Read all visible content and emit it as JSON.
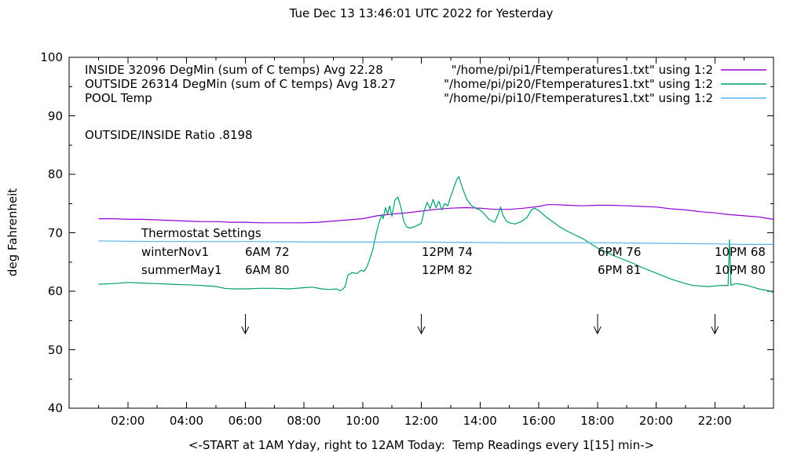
{
  "annotations": {
    "ratio": "OUTSIDE/INSIDE Ratio .8198",
    "thermostat": {
      "heading": "Thermostat Settings",
      "marker_hours": [
        6,
        12,
        18,
        22
      ],
      "rows": [
        {
          "name": "winterNov1",
          "settings": [
            "6AM 72",
            "12PM 74",
            "6PM 76",
            "10PM 68"
          ]
        },
        {
          "name": "summerMay1",
          "settings": [
            "6AM 80",
            "12PM 82",
            "6PM 81",
            "10PM 80"
          ]
        }
      ]
    }
  },
  "legend": {
    "entries": [
      {
        "label": "INSIDE 32096 DegMin (sum of C temps) Avg 22.28",
        "source": "\"/home/pi/pi1/Ftemperatures1.txt\" using 1:2"
      },
      {
        "label": "OUTSIDE 26314 DegMin (sum of C temps) Avg 18.27",
        "source": "\"/home/pi/pi20/Ftemperatures1.txt\" using 1:2"
      },
      {
        "label": "POOL Temp",
        "source": "\"/home/pi/pi10/Ftemperatures1.txt\" using 1:2"
      }
    ]
  },
  "chart_data": {
    "type": "line",
    "title": "Tue Dec 13 13:46:01 UTC 2022 for Yesterday",
    "xlabel": "<-START at 1AM Yday, right to 12AM Today:  Temp Readings every 1[15] min->",
    "ylabel": "deg Fahrenheit",
    "xlim": [
      0,
      24
    ],
    "ylim": [
      40,
      100
    ],
    "grid": false,
    "legend_position": "inside top",
    "xticks": [
      {
        "v": 2,
        "label": "02:00"
      },
      {
        "v": 4,
        "label": "04:00"
      },
      {
        "v": 6,
        "label": "06:00"
      },
      {
        "v": 8,
        "label": "08:00"
      },
      {
        "v": 10,
        "label": "10:00"
      },
      {
        "v": 12,
        "label": "12:00"
      },
      {
        "v": 14,
        "label": "14:00"
      },
      {
        "v": 16,
        "label": "16:00"
      },
      {
        "v": 18,
        "label": "18:00"
      },
      {
        "v": 20,
        "label": "20:00"
      },
      {
        "v": 22,
        "label": "22:00"
      }
    ],
    "yticks": [
      40,
      50,
      60,
      70,
      80,
      90,
      100
    ],
    "series": [
      {
        "name": "INSIDE",
        "color": "#9400d3",
        "points": [
          [
            1.0,
            72.4
          ],
          [
            1.5,
            72.4
          ],
          [
            2.0,
            72.3
          ],
          [
            2.5,
            72.3
          ],
          [
            3.0,
            72.2
          ],
          [
            3.5,
            72.1
          ],
          [
            4.0,
            72.0
          ],
          [
            4.5,
            71.9
          ],
          [
            5.0,
            71.9
          ],
          [
            5.5,
            71.8
          ],
          [
            6.0,
            71.8
          ],
          [
            6.5,
            71.7
          ],
          [
            7.0,
            71.7
          ],
          [
            7.5,
            71.7
          ],
          [
            8.0,
            71.7
          ],
          [
            8.5,
            71.8
          ],
          [
            9.0,
            72.0
          ],
          [
            9.5,
            72.2
          ],
          [
            10.0,
            72.4
          ],
          [
            10.5,
            72.9
          ],
          [
            11.0,
            73.2
          ],
          [
            11.5,
            73.4
          ],
          [
            12.0,
            73.7
          ],
          [
            12.5,
            74.0
          ],
          [
            13.0,
            74.2
          ],
          [
            13.5,
            74.3
          ],
          [
            14.0,
            74.2
          ],
          [
            14.5,
            74.0
          ],
          [
            15.0,
            74.0
          ],
          [
            15.5,
            74.2
          ],
          [
            16.0,
            74.5
          ],
          [
            16.3,
            74.8
          ],
          [
            16.6,
            74.8
          ],
          [
            17.0,
            74.7
          ],
          [
            17.5,
            74.6
          ],
          [
            18.0,
            74.7
          ],
          [
            18.5,
            74.7
          ],
          [
            19.0,
            74.6
          ],
          [
            19.5,
            74.5
          ],
          [
            20.0,
            74.4
          ],
          [
            20.5,
            74.1
          ],
          [
            21.0,
            73.9
          ],
          [
            21.5,
            73.6
          ],
          [
            22.0,
            73.4
          ],
          [
            22.5,
            73.1
          ],
          [
            23.0,
            72.9
          ],
          [
            23.5,
            72.7
          ],
          [
            24.0,
            72.3
          ]
        ]
      },
      {
        "name": "OUTSIDE",
        "color": "#009e73",
        "points": [
          [
            1.0,
            61.2
          ],
          [
            1.5,
            61.3
          ],
          [
            2.0,
            61.5
          ],
          [
            2.5,
            61.4
          ],
          [
            3.0,
            61.3
          ],
          [
            3.5,
            61.2
          ],
          [
            4.0,
            61.1
          ],
          [
            4.5,
            61.0
          ],
          [
            5.0,
            60.8
          ],
          [
            5.3,
            60.5
          ],
          [
            5.6,
            60.4
          ],
          [
            6.0,
            60.4
          ],
          [
            6.5,
            60.5
          ],
          [
            7.0,
            60.5
          ],
          [
            7.5,
            60.4
          ],
          [
            8.0,
            60.6
          ],
          [
            8.3,
            60.7
          ],
          [
            8.6,
            60.4
          ],
          [
            8.9,
            60.3
          ],
          [
            9.1,
            60.4
          ],
          [
            9.25,
            60.1
          ],
          [
            9.4,
            60.7
          ],
          [
            9.5,
            62.8
          ],
          [
            9.65,
            63.2
          ],
          [
            9.8,
            63.0
          ],
          [
            9.95,
            63.6
          ],
          [
            10.05,
            63.4
          ],
          [
            10.15,
            64.2
          ],
          [
            10.25,
            65.6
          ],
          [
            10.35,
            67.2
          ],
          [
            10.45,
            69.6
          ],
          [
            10.55,
            71.6
          ],
          [
            10.65,
            73.1
          ],
          [
            10.7,
            72.4
          ],
          [
            10.78,
            74.3
          ],
          [
            10.85,
            73.2
          ],
          [
            10.92,
            74.6
          ],
          [
            11.0,
            72.8
          ],
          [
            11.1,
            75.6
          ],
          [
            11.2,
            76.1
          ],
          [
            11.3,
            74.5
          ],
          [
            11.4,
            72.0
          ],
          [
            11.5,
            71.0
          ],
          [
            11.62,
            70.8
          ],
          [
            11.75,
            71.0
          ],
          [
            11.88,
            71.3
          ],
          [
            12.0,
            71.6
          ],
          [
            12.1,
            73.8
          ],
          [
            12.2,
            75.2
          ],
          [
            12.3,
            74.1
          ],
          [
            12.4,
            75.7
          ],
          [
            12.5,
            74.3
          ],
          [
            12.6,
            75.4
          ],
          [
            12.7,
            73.9
          ],
          [
            12.8,
            75.0
          ],
          [
            12.9,
            74.6
          ],
          [
            13.0,
            76.2
          ],
          [
            13.1,
            77.6
          ],
          [
            13.2,
            79.0
          ],
          [
            13.28,
            79.6
          ],
          [
            13.36,
            78.3
          ],
          [
            13.45,
            77.0
          ],
          [
            13.55,
            75.7
          ],
          [
            13.7,
            74.7
          ],
          [
            13.85,
            74.2
          ],
          [
            14.0,
            73.9
          ],
          [
            14.15,
            73.2
          ],
          [
            14.3,
            72.3
          ],
          [
            14.5,
            71.8
          ],
          [
            14.63,
            73.3
          ],
          [
            14.7,
            74.4
          ],
          [
            14.78,
            73.0
          ],
          [
            14.9,
            72.0
          ],
          [
            15.0,
            71.7
          ],
          [
            15.2,
            71.5
          ],
          [
            15.4,
            71.9
          ],
          [
            15.6,
            72.6
          ],
          [
            15.75,
            73.9
          ],
          [
            15.85,
            74.2
          ],
          [
            16.0,
            73.8
          ],
          [
            16.1,
            73.4
          ],
          [
            16.25,
            72.7
          ],
          [
            16.5,
            71.8
          ],
          [
            16.75,
            70.9
          ],
          [
            17.0,
            70.2
          ],
          [
            17.25,
            69.6
          ],
          [
            17.5,
            69.0
          ],
          [
            17.75,
            68.2
          ],
          [
            18.0,
            67.4
          ],
          [
            18.25,
            66.8
          ],
          [
            18.5,
            66.2
          ],
          [
            18.75,
            65.7
          ],
          [
            19.0,
            65.2
          ],
          [
            19.25,
            64.7
          ],
          [
            19.5,
            64.1
          ],
          [
            19.75,
            63.6
          ],
          [
            20.0,
            63.1
          ],
          [
            20.25,
            62.6
          ],
          [
            20.5,
            62.1
          ],
          [
            20.75,
            61.7
          ],
          [
            21.0,
            61.3
          ],
          [
            21.25,
            61.0
          ],
          [
            21.5,
            60.9
          ],
          [
            21.75,
            60.8
          ],
          [
            22.0,
            60.9
          ],
          [
            22.2,
            61.0
          ],
          [
            22.45,
            61.0
          ],
          [
            22.5,
            68.8
          ],
          [
            22.55,
            61.0
          ],
          [
            22.7,
            61.3
          ],
          [
            22.9,
            61.2
          ],
          [
            23.1,
            61.0
          ],
          [
            23.3,
            60.7
          ],
          [
            23.5,
            60.4
          ],
          [
            23.7,
            60.2
          ],
          [
            23.85,
            60.1
          ],
          [
            23.97,
            59.8
          ]
        ]
      },
      {
        "name": "POOL",
        "color": "#56b4e9",
        "points": [
          [
            1.0,
            68.6
          ],
          [
            3.0,
            68.5
          ],
          [
            6.0,
            68.5
          ],
          [
            9.0,
            68.4
          ],
          [
            12.0,
            68.4
          ],
          [
            15.0,
            68.3
          ],
          [
            18.0,
            68.3
          ],
          [
            20.0,
            68.2
          ],
          [
            22.0,
            68.1
          ],
          [
            23.0,
            68.0
          ],
          [
            24.0,
            68.0
          ]
        ]
      }
    ]
  }
}
